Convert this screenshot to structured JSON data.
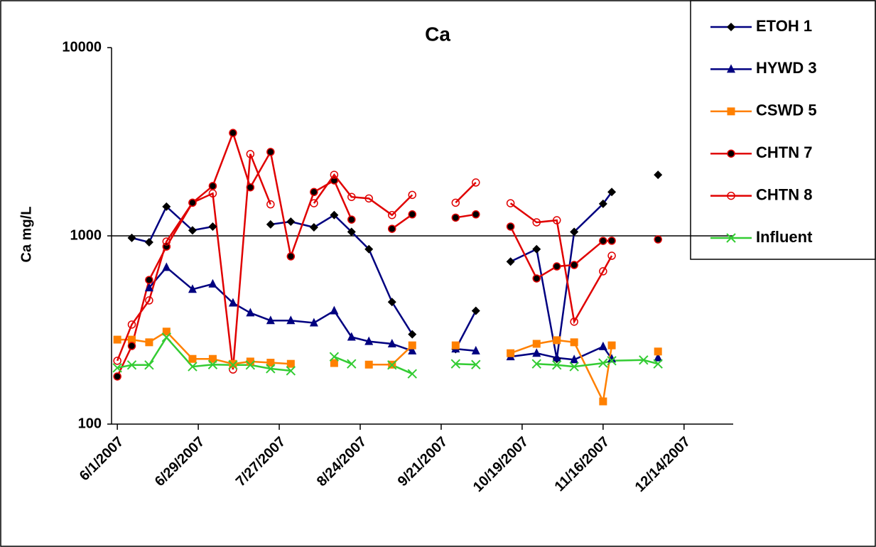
{
  "chart_data": {
    "type": "line",
    "title": "Ca",
    "y_label": "Ca mg/L",
    "log_y": true,
    "grid": true,
    "legend": "top-right",
    "x": [
      "2007-06-01",
      "2007-06-06",
      "2007-06-12",
      "2007-06-18",
      "2007-06-27",
      "2007-07-04",
      "2007-07-11",
      "2007-07-17",
      "2007-07-24",
      "2007-07-31",
      "2007-08-08",
      "2007-08-15",
      "2007-08-21",
      "2007-08-27",
      "2007-09-04",
      "2007-09-11",
      "2007-09-18",
      "2007-09-26",
      "2007-10-03",
      "2007-10-09",
      "2007-10-15",
      "2007-10-24",
      "2007-10-31",
      "2007-11-06",
      "2007-11-16",
      "2007-11-19",
      "2007-11-30",
      "2007-12-05"
    ],
    "xlim": [
      "2007-05-30",
      "2007-12-31"
    ],
    "xticks": [
      {
        "value": "2007-06-01",
        "label": "6/1/2007"
      },
      {
        "value": "2007-06-29",
        "label": "6/29/2007"
      },
      {
        "value": "2007-07-27",
        "label": "7/27/2007"
      },
      {
        "value": "2007-08-24",
        "label": "8/24/2007"
      },
      {
        "value": "2007-09-21",
        "label": "9/21/2007"
      },
      {
        "value": "2007-10-19",
        "label": "10/19/2007"
      },
      {
        "value": "2007-11-16",
        "label": "11/16/2007"
      },
      {
        "value": "2007-12-14",
        "label": "12/14/2007"
      }
    ],
    "ylim": [
      100,
      10000
    ],
    "yticks": [
      100,
      1000,
      10000
    ],
    "series": [
      {
        "name": "ETOH 1",
        "color": "#000080",
        "marker": "diamond",
        "marker_color": "#000000",
        "values": [
          null,
          975,
          925,
          1430,
          1070,
          1120,
          null,
          null,
          1150,
          1190,
          1110,
          1290,
          1050,
          850,
          445,
          300,
          null,
          250,
          400,
          null,
          730,
          850,
          222,
          1050,
          1480,
          1710,
          null,
          2110
        ]
      },
      {
        "name": "HYWD 3",
        "color": "#000080",
        "marker": "triangle",
        "marker_color": "#000080",
        "values": [
          null,
          null,
          530,
          680,
          520,
          555,
          440,
          390,
          355,
          355,
          345,
          400,
          290,
          275,
          267,
          245,
          null,
          251,
          245,
          null,
          228,
          238,
          225,
          220,
          258,
          222,
          null,
          225
        ]
      },
      {
        "name": "CSWD 5",
        "color": "#ff8000",
        "marker": "square",
        "marker_color": "#ff8000",
        "values": [
          281,
          281,
          272,
          310,
          222,
          222,
          209,
          215,
          212,
          209,
          null,
          211,
          null,
          207,
          207,
          262,
          null,
          262,
          null,
          null,
          238,
          267,
          279,
          272,
          132,
          262,
          null,
          243
        ]
      },
      {
        "name": "CHTN 7",
        "color": "#e00000",
        "marker": "circle-filled",
        "marker_color": "#e00000",
        "values": [
          179,
          260,
          583,
          877,
          1500,
          1840,
          3520,
          1810,
          2790,
          778,
          1710,
          1970,
          1220,
          null,
          1090,
          1300,
          null,
          1250,
          1300,
          null,
          1120,
          594,
          688,
          700,
          940,
          942,
          null,
          957
        ]
      },
      {
        "name": "CHTN 8",
        "color": "#e00000",
        "marker": "circle-open",
        "marker_color": "#e00000",
        "values": [
          217,
          338,
          454,
          933,
          1500,
          1680,
          195,
          2720,
          1470,
          null,
          1490,
          2110,
          1610,
          1580,
          1290,
          1650,
          null,
          1500,
          1920,
          null,
          1490,
          1180,
          1210,
          350,
          648,
          784,
          null,
          null
        ]
      },
      {
        "name": "Influent",
        "color": "#33cc33",
        "marker": "x",
        "marker_color": "#33cc33",
        "values": [
          199,
          206,
          206,
          289,
          202,
          207,
          206,
          206,
          197,
          192,
          null,
          228,
          209,
          null,
          206,
          185,
          null,
          209,
          207,
          null,
          null,
          209,
          206,
          202,
          211,
          217,
          219,
          209
        ]
      }
    ]
  }
}
